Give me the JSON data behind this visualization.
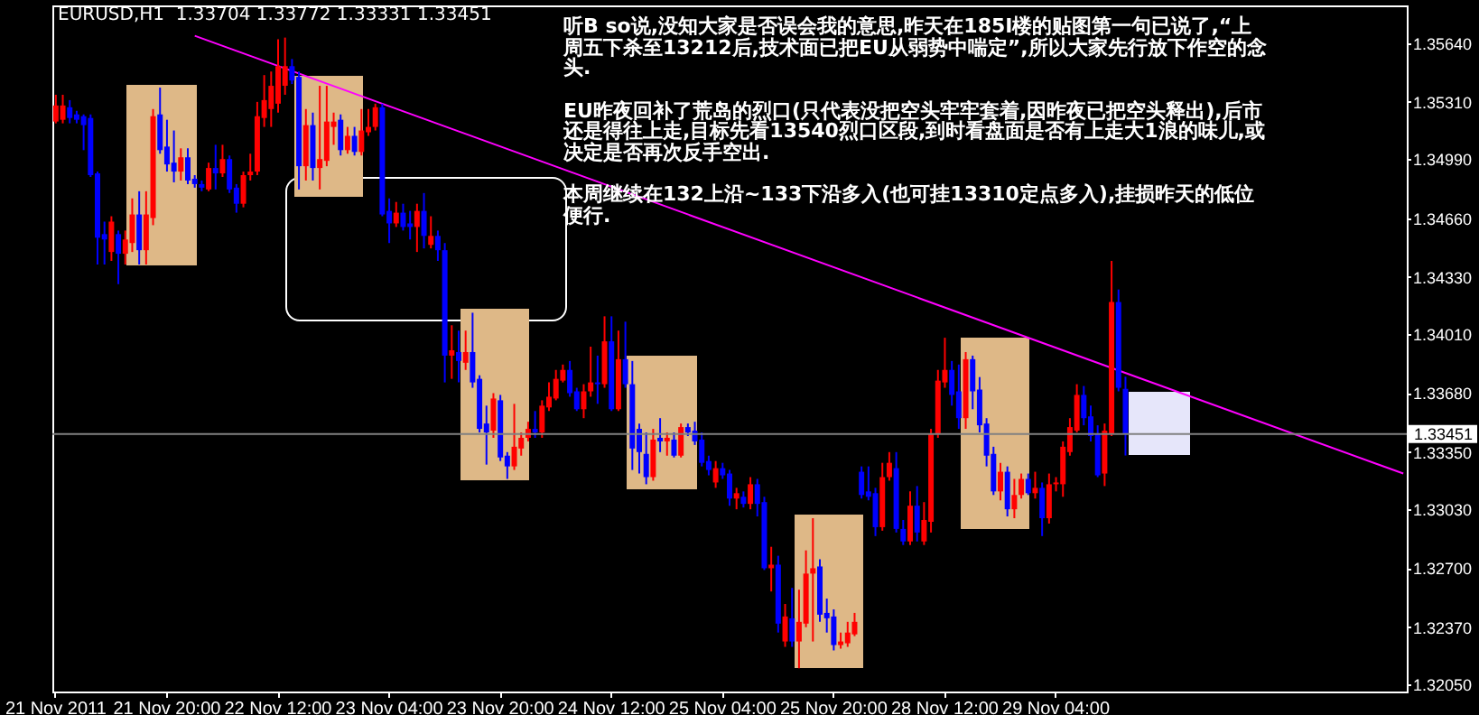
{
  "chart_data": {
    "type": "candlestick",
    "title": "EURUSD,H1  1.33704 1.33772 1.33331 1.33451",
    "annotations": [
      "听B so说,没知大家是否误会我的意思,昨天在185I楼的贴图第一句已说了,“上周五下杀至13212后,技术面已把EU从弱势中喘定”,所以大家先行放下作空的念头.",
      "EU昨夜回补了荒岛的烈口(只代表没把空头牢牢套着,因昨夜已把空头释出),后市还是得往上走,目标先看13540烈口区段,到时看盘面是否有上走大1浪的味儿,或决定是否再次反手空出.",
      "本周继续在132上沿~133下沿多入(也可挂13310定点多入),挂损昨天的低位便行."
    ],
    "categories": [
      "21 Nov 2011",
      null,
      null,
      null,
      null,
      null,
      null,
      null,
      null,
      null,
      null,
      null,
      null,
      null,
      null,
      null,
      "21 Nov 20:00",
      null,
      null,
      null,
      null,
      null,
      null,
      null,
      null,
      null,
      null,
      null,
      null,
      null,
      null,
      null,
      "22 Nov 12:00",
      null,
      null,
      null,
      null,
      null,
      null,
      null,
      null,
      null,
      null,
      null,
      null,
      null,
      null,
      null,
      "23 Nov 04:00",
      null,
      null,
      null,
      null,
      null,
      null,
      null,
      null,
      null,
      null,
      null,
      null,
      null,
      null,
      null,
      "23 Nov 20:00",
      null,
      null,
      null,
      null,
      null,
      null,
      null,
      null,
      null,
      null,
      null,
      null,
      null,
      null,
      null,
      "24 Nov 12:00",
      null,
      null,
      null,
      null,
      null,
      null,
      null,
      null,
      null,
      null,
      null,
      null,
      null,
      null,
      null,
      "25 Nov 04:00",
      null,
      null,
      null,
      null,
      null,
      null,
      null,
      null,
      null,
      null,
      null,
      null,
      null,
      null,
      null,
      "25 Nov 20:00",
      null,
      null,
      null,
      null,
      null,
      null,
      null,
      null,
      null,
      null,
      null,
      null,
      null,
      null,
      null,
      "28 Nov 12:00",
      null,
      null,
      null,
      null,
      null,
      null,
      null,
      null,
      null,
      null,
      null,
      null,
      null,
      null,
      null,
      "29 Nov 04:00",
      null,
      null,
      null,
      null,
      null,
      null,
      null,
      null,
      null,
      null,
      null,
      null,
      null,
      null,
      null,
      null,
      null,
      null,
      null,
      null,
      null,
      null,
      null,
      null,
      null,
      null,
      null,
      null,
      null,
      null,
      null,
      null,
      null,
      null,
      null,
      null,
      null,
      null,
      null,
      null,
      null,
      null,
      null,
      null,
      null,
      null,
      null,
      null,
      null,
      null
    ],
    "ohlc": [
      [
        1.352,
        1.3535,
        1.3519,
        1.3529
      ],
      [
        1.3521,
        1.3535,
        1.3519,
        1.3529
      ],
      [
        1.3528,
        1.3532,
        1.3519,
        1.3522
      ],
      [
        1.3524,
        1.3526,
        1.3519,
        1.3521
      ],
      [
        1.3523,
        1.3524,
        1.3504,
        1.3518
      ],
      [
        1.3522,
        1.3524,
        1.3489,
        1.349
      ],
      [
        1.3491,
        1.3492,
        1.344,
        1.3455
      ],
      [
        1.3457,
        1.3464,
        1.344,
        1.3454
      ],
      [
        1.3447,
        1.3467,
        1.3442,
        1.3464
      ],
      [
        1.3457,
        1.3459,
        1.3429,
        1.3446
      ],
      [
        1.3446,
        1.3459,
        1.344,
        1.3454
      ],
      [
        1.3452,
        1.3477,
        1.3447,
        1.3468
      ],
      [
        1.3468,
        1.3481,
        1.344,
        1.3448
      ],
      [
        1.3448,
        1.3481,
        1.344,
        1.3468
      ],
      [
        1.3466,
        1.3527,
        1.3462,
        1.3523
      ],
      [
        1.3524,
        1.3539,
        1.3502,
        1.3504
      ],
      [
        1.3506,
        1.3521,
        1.3492,
        1.3496
      ],
      [
        1.3497,
        1.3515,
        1.3486,
        1.3492
      ],
      [
        1.3492,
        1.3505,
        1.3487,
        1.35
      ],
      [
        1.35,
        1.3505,
        1.3485,
        1.3487
      ],
      [
        1.3488,
        1.349,
        1.3483,
        1.3485
      ],
      [
        1.3485,
        1.3487,
        1.3481,
        1.3483
      ],
      [
        1.3482,
        1.3497,
        1.3481,
        1.3494
      ],
      [
        1.3494,
        1.3507,
        1.3482,
        1.3491
      ],
      [
        1.3491,
        1.3507,
        1.3489,
        1.3499
      ],
      [
        1.3499,
        1.3501,
        1.348,
        1.3482
      ],
      [
        1.3483,
        1.3485,
        1.3469,
        1.3474
      ],
      [
        1.3474,
        1.3492,
        1.3472,
        1.349
      ],
      [
        1.349,
        1.3502,
        1.3487,
        1.3492
      ],
      [
        1.3492,
        1.3531,
        1.349,
        1.3523
      ],
      [
        1.3522,
        1.3546,
        1.3517,
        1.3532
      ],
      [
        1.3527,
        1.3548,
        1.3517,
        1.354
      ],
      [
        1.353,
        1.3566,
        1.3525,
        1.3551
      ],
      [
        1.354,
        1.3567,
        1.3535,
        1.3551
      ],
      [
        1.3551,
        1.3555,
        1.3541,
        1.3543
      ],
      [
        1.3545,
        1.3548,
        1.3482,
        1.3495
      ],
      [
        1.3495,
        1.3527,
        1.3487,
        1.3518
      ],
      [
        1.3518,
        1.3525,
        1.3487,
        1.3494
      ],
      [
        1.3494,
        1.354,
        1.3482,
        1.3499
      ],
      [
        1.3498,
        1.354,
        1.3495,
        1.352
      ],
      [
        1.3517,
        1.3525,
        1.3507,
        1.352
      ],
      [
        1.3521,
        1.3524,
        1.3501,
        1.3504
      ],
      [
        1.3504,
        1.3517,
        1.3502,
        1.3512
      ],
      [
        1.3512,
        1.3517,
        1.3501,
        1.3503
      ],
      [
        1.3503,
        1.3527,
        1.3501,
        1.3515
      ],
      [
        1.3514,
        1.3527,
        1.3512,
        1.3517
      ],
      [
        1.3517,
        1.353,
        1.3515,
        1.3528
      ],
      [
        1.3528,
        1.353,
        1.3467,
        1.3468
      ],
      [
        1.347,
        1.3477,
        1.3452,
        1.3463
      ],
      [
        1.3463,
        1.3475,
        1.3461,
        1.3469
      ],
      [
        1.3469,
        1.3474,
        1.3459,
        1.3461
      ],
      [
        1.3463,
        1.347,
        1.3454,
        1.3461
      ],
      [
        1.3461,
        1.3474,
        1.3447,
        1.347
      ],
      [
        1.347,
        1.348,
        1.3449,
        1.3456
      ],
      [
        1.3451,
        1.3467,
        1.3449,
        1.3456
      ],
      [
        1.3456,
        1.3459,
        1.3442,
        1.3448
      ],
      [
        1.3448,
        1.3452,
        1.3374,
        1.3389
      ],
      [
        1.3389,
        1.3406,
        1.3376,
        1.3392
      ],
      [
        1.3391,
        1.3403,
        1.3374,
        1.3386
      ],
      [
        1.3385,
        1.3403,
        1.3381,
        1.3391
      ],
      [
        1.3391,
        1.3413,
        1.3371,
        1.3374
      ],
      [
        1.3376,
        1.3378,
        1.3346,
        1.3348
      ],
      [
        1.3351,
        1.3361,
        1.3328,
        1.3346
      ],
      [
        1.3347,
        1.3368,
        1.3343,
        1.3365
      ],
      [
        1.3364,
        1.3367,
        1.333,
        1.3332
      ],
      [
        1.3333,
        1.3335,
        1.332,
        1.3327
      ],
      [
        1.3327,
        1.3362,
        1.3325,
        1.3338
      ],
      [
        1.3337,
        1.3346,
        1.3333,
        1.3343
      ],
      [
        1.3343,
        1.3352,
        1.3341,
        1.3348
      ],
      [
        1.3348,
        1.3358,
        1.3343,
        1.3346
      ],
      [
        1.3346,
        1.3364,
        1.3343,
        1.3361
      ],
      [
        1.336,
        1.3374,
        1.3358,
        1.3366
      ],
      [
        1.3365,
        1.3381,
        1.3364,
        1.3376
      ],
      [
        1.3375,
        1.3384,
        1.3374,
        1.3381
      ],
      [
        1.3381,
        1.3386,
        1.3366,
        1.3368
      ],
      [
        1.3369,
        1.3371,
        1.3358,
        1.3359
      ],
      [
        1.3359,
        1.3373,
        1.3354,
        1.3369
      ],
      [
        1.3369,
        1.3394,
        1.3366,
        1.3374
      ],
      [
        1.3374,
        1.3389,
        1.3362,
        1.3373
      ],
      [
        1.3373,
        1.3411,
        1.3371,
        1.3397
      ],
      [
        1.3397,
        1.3411,
        1.3358,
        1.3359
      ],
      [
        1.3359,
        1.3403,
        1.3358,
        1.3387
      ],
      [
        1.3387,
        1.3408,
        1.3371,
        1.3373
      ],
      [
        1.3373,
        1.3386,
        1.3325,
        1.3337
      ],
      [
        1.3348,
        1.3351,
        1.3323,
        1.3335
      ],
      [
        1.3334,
        1.3346,
        1.3317,
        1.3321
      ],
      [
        1.3321,
        1.3348,
        1.3319,
        1.3342
      ],
      [
        1.3343,
        1.3354,
        1.3335,
        1.3341
      ],
      [
        1.3341,
        1.3346,
        1.3333,
        1.3343
      ],
      [
        1.3342,
        1.3346,
        1.3332,
        1.3333
      ],
      [
        1.3333,
        1.3351,
        1.3332,
        1.3349
      ],
      [
        1.3349,
        1.3351,
        1.3344,
        1.3346
      ],
      [
        1.3347,
        1.3352,
        1.3339,
        1.3341
      ],
      [
        1.3342,
        1.3346,
        1.3327,
        1.3329
      ],
      [
        1.333,
        1.3333,
        1.3322,
        1.3325
      ],
      [
        1.3318,
        1.333,
        1.3315,
        1.3326
      ],
      [
        1.3326,
        1.3329,
        1.332,
        1.3322
      ],
      [
        1.3323,
        1.3325,
        1.3305,
        1.3309
      ],
      [
        1.3309,
        1.3315,
        1.3303,
        1.3312
      ],
      [
        1.331,
        1.3313,
        1.3304,
        1.3306
      ],
      [
        1.3306,
        1.3321,
        1.3303,
        1.3317
      ],
      [
        1.3317,
        1.332,
        1.3299,
        1.3306
      ],
      [
        1.3307,
        1.331,
        1.3269,
        1.327
      ],
      [
        1.327,
        1.3282,
        1.3257,
        1.3272
      ],
      [
        1.3272,
        1.3277,
        1.3234,
        1.3239
      ],
      [
        1.3229,
        1.325,
        1.3226,
        1.3243
      ],
      [
        1.3242,
        1.3259,
        1.3226,
        1.3229
      ],
      [
        1.3229,
        1.3258,
        1.3214,
        1.324
      ],
      [
        1.3239,
        1.328,
        1.3237,
        1.3267
      ],
      [
        1.3267,
        1.3298,
        1.3229,
        1.327
      ],
      [
        1.3271,
        1.3275,
        1.324,
        1.3244
      ],
      [
        1.3245,
        1.3253,
        1.3234,
        1.3242
      ],
      [
        1.3243,
        1.3247,
        1.3224,
        1.3227
      ],
      [
        1.3227,
        1.3234,
        1.3225,
        1.3229
      ],
      [
        1.3228,
        1.324,
        1.3226,
        1.3234
      ],
      [
        1.3233,
        1.3245,
        1.3232,
        1.324
      ],
      [
        1.3324,
        1.3327,
        1.3309,
        1.3311
      ],
      [
        1.3313,
        1.3327,
        1.3308,
        1.331
      ],
      [
        1.3312,
        1.3315,
        1.3288,
        1.3293
      ],
      [
        1.3293,
        1.3329,
        1.3291,
        1.3321
      ],
      [
        1.3321,
        1.3335,
        1.3319,
        1.3329
      ],
      [
        1.3326,
        1.3335,
        1.329,
        1.3292
      ],
      [
        1.3292,
        1.3297,
        1.3283,
        1.3285
      ],
      [
        1.3285,
        1.3313,
        1.3283,
        1.3305
      ],
      [
        1.3305,
        1.3316,
        1.3285,
        1.329
      ],
      [
        1.3285,
        1.3307,
        1.3283,
        1.3297
      ],
      [
        1.3296,
        1.3348,
        1.329,
        1.3345
      ],
      [
        1.3345,
        1.3381,
        1.3343,
        1.3375
      ],
      [
        1.3374,
        1.3399,
        1.3371,
        1.3381
      ],
      [
        1.3381,
        1.3386,
        1.3361,
        1.3367
      ],
      [
        1.3369,
        1.3384,
        1.3348,
        1.3354
      ],
      [
        1.3354,
        1.3391,
        1.3348,
        1.3387
      ],
      [
        1.3387,
        1.3389,
        1.3359,
        1.3369
      ],
      [
        1.337,
        1.3377,
        1.3346,
        1.335
      ],
      [
        1.3351,
        1.3354,
        1.3327,
        1.3333
      ],
      [
        1.3334,
        1.3338,
        1.3311,
        1.3313
      ],
      [
        1.3313,
        1.3329,
        1.3308,
        1.3324
      ],
      [
        1.3324,
        1.3327,
        1.3299,
        1.3303
      ],
      [
        1.3303,
        1.332,
        1.3298,
        1.3311
      ],
      [
        1.3311,
        1.3323,
        1.3309,
        1.332
      ],
      [
        1.332,
        1.3323,
        1.3311,
        1.3312
      ],
      [
        1.3312,
        1.3324,
        1.3309,
        1.3315
      ],
      [
        1.3315,
        1.3318,
        1.3288,
        1.3298
      ],
      [
        1.3298,
        1.3323,
        1.3295,
        1.3317
      ],
      [
        1.3317,
        1.3321,
        1.3313,
        1.3318
      ],
      [
        1.3317,
        1.3341,
        1.331,
        1.3338
      ],
      [
        1.3335,
        1.3354,
        1.3333,
        1.3349
      ],
      [
        1.3347,
        1.3373,
        1.3346,
        1.3367
      ],
      [
        1.3367,
        1.3372,
        1.335,
        1.3354
      ],
      [
        1.3355,
        1.3361,
        1.3341,
        1.3344
      ],
      [
        1.3345,
        1.335,
        1.3321,
        1.3322
      ],
      [
        1.3323,
        1.3351,
        1.3316,
        1.3347
      ],
      [
        1.3345,
        1.3442,
        1.3344,
        1.3419
      ],
      [
        1.3419,
        1.3426,
        1.3369,
        1.3371
      ],
      [
        1.33704,
        1.33772,
        1.33331,
        1.33451
      ],
      null,
      null,
      null,
      null,
      null,
      null,
      null,
      null,
      null,
      null,
      null,
      null,
      null,
      null,
      null,
      null,
      null,
      null,
      null,
      null,
      null,
      null,
      null,
      null,
      null,
      null,
      null,
      null,
      null,
      null,
      null,
      null,
      null,
      null,
      null,
      null,
      null,
      null,
      null,
      null
    ],
    "colors": [
      "#ff0000",
      "#ff0000",
      "#0000ff",
      "#0000ff",
      "#0000ff",
      "#0000ff",
      "#0000ff",
      "#0000ff",
      "#ff0000",
      "#0000ff",
      "#ff0000",
      "#ff0000",
      "#0000ff",
      "#ff0000",
      "#ff0000",
      "#0000ff",
      "#0000ff",
      "#0000ff",
      "#ff0000",
      "#0000ff",
      "#0000ff",
      "#0000ff",
      "#ff0000",
      "#0000ff",
      "#ff0000",
      "#0000ff",
      "#0000ff",
      "#ff0000",
      "#ff0000",
      "#ff0000",
      "#ff0000",
      "#ff0000",
      "#ff0000",
      "#ff0000",
      "#0000ff",
      "#0000ff",
      "#ff0000",
      "#0000ff",
      "#ff0000",
      "#ff0000",
      "#ff0000",
      "#0000ff",
      "#ff0000",
      "#0000ff",
      "#ff0000",
      "#ff0000",
      "#ff0000",
      "#0000ff",
      "#0000ff",
      "#ff0000",
      "#0000ff",
      "#0000ff",
      "#ff0000",
      "#0000ff",
      "#ff0000",
      "#0000ff",
      "#0000ff",
      "#ff0000",
      "#0000ff",
      "#ff0000",
      "#0000ff",
      "#0000ff",
      "#0000ff",
      "#ff0000",
      "#0000ff",
      "#0000ff",
      "#ff0000",
      "#ff0000",
      "#ff0000",
      "#0000ff",
      "#ff0000",
      "#ff0000",
      "#ff0000",
      "#ff0000",
      "#0000ff",
      "#0000ff",
      "#ff0000",
      "#ff0000",
      "#0000ff",
      "#ff0000",
      "#0000ff",
      "#ff0000",
      "#0000ff",
      "#0000ff",
      "#0000ff",
      "#0000ff",
      "#ff0000",
      "#0000ff",
      "#ff0000",
      "#0000ff",
      "#ff0000",
      "#0000ff",
      "#0000ff",
      "#0000ff",
      "#0000ff",
      "#ff0000",
      "#0000ff",
      "#0000ff",
      "#ff0000",
      "#0000ff",
      "#ff0000",
      "#0000ff",
      "#0000ff",
      "#ff0000",
      "#0000ff",
      "#ff0000",
      "#0000ff",
      "#ff0000",
      "#ff0000",
      "#ff0000",
      "#0000ff",
      "#0000ff",
      "#0000ff",
      "#ff0000",
      "#ff0000",
      "#ff0000",
      "#0000ff",
      "#0000ff",
      "#0000ff",
      "#ff0000",
      "#ff0000",
      "#0000ff",
      "#0000ff",
      "#ff0000",
      "#0000ff",
      "#ff0000",
      "#ff0000",
      "#ff0000",
      "#ff0000",
      "#0000ff",
      "#0000ff",
      "#ff0000",
      "#0000ff",
      "#0000ff",
      "#0000ff",
      "#0000ff",
      "#ff0000",
      "#0000ff",
      "#ff0000",
      "#ff0000",
      "#0000ff",
      "#ff0000",
      "#0000ff",
      "#ff0000",
      "#ff0000",
      "#ff0000",
      "#ff0000",
      "#ff0000",
      "#0000ff",
      "#0000ff",
      "#0000ff",
      "#ff0000",
      "#ff0000",
      "#0000ff",
      "#0000ff",
      null,
      null,
      null,
      null,
      null,
      null,
      null,
      null,
      null,
      null,
      null,
      null,
      null,
      null,
      null,
      null,
      null,
      null,
      null,
      null,
      null,
      null,
      null,
      null,
      null,
      null,
      null,
      null,
      null,
      null,
      null,
      null,
      null,
      null,
      null,
      null,
      null,
      null,
      null,
      null
    ],
    "series": [
      {
        "type": "line",
        "color": "#ff00ff",
        "values": [
          null,
          null,
          null,
          null,
          null,
          null,
          null,
          null,
          null,
          null,
          null,
          null,
          null,
          null,
          null,
          null,
          null,
          null,
          null,
          null,
          1.3568,
          null,
          null,
          null,
          null,
          null,
          null,
          null,
          null,
          null,
          null,
          null,
          null,
          null,
          null,
          null,
          null,
          null,
          null,
          null,
          null,
          null,
          null,
          null,
          null,
          null,
          null,
          null,
          null,
          null,
          null,
          null,
          null,
          null,
          null,
          null,
          null,
          null,
          null,
          null,
          null,
          null,
          null,
          null,
          null,
          null,
          null,
          null,
          null,
          null,
          null,
          null,
          null,
          null,
          null,
          null,
          null,
          null,
          null,
          null,
          null,
          null,
          null,
          null,
          null,
          null,
          null,
          null,
          null,
          null,
          null,
          null,
          null,
          null,
          null,
          null,
          null,
          null,
          null,
          null,
          null,
          null,
          null,
          null,
          null,
          null,
          null,
          null,
          null,
          null,
          null,
          null,
          null,
          null,
          null,
          null,
          null,
          null,
          null,
          null,
          null,
          null,
          null,
          null,
          null,
          null,
          null,
          null,
          null,
          null,
          null,
          null,
          null,
          null,
          null,
          null,
          null,
          null,
          null,
          null,
          null,
          null,
          null,
          null,
          null,
          null,
          null,
          null,
          null,
          null,
          null,
          null,
          null,
          null,
          null,
          null,
          null,
          null,
          null,
          null,
          null,
          null,
          null,
          null,
          null,
          null,
          null,
          null,
          null,
          null,
          null,
          null,
          null,
          null,
          null,
          null,
          null,
          null,
          null,
          null,
          null,
          null,
          null,
          null,
          null,
          null,
          null,
          null,
          null,
          null,
          null,
          null,
          null,
          null,
          1.3323
        ]
      }
    ],
    "ylim": [
      1.3201,
      1.3585
    ],
    "yticks": [
      {
        "value": 1.3564,
        "label": "1.35640"
      },
      {
        "value": 1.3531,
        "label": "1.35310"
      },
      {
        "value": 1.3499,
        "label": "1.34990"
      },
      {
        "value": 1.3466,
        "label": "1.34660"
      },
      {
        "value": 1.3433,
        "label": "1.34330"
      },
      {
        "value": 1.3401,
        "label": "1.34010"
      },
      {
        "value": 1.3368,
        "label": "1.33680"
      },
      {
        "value": 1.3335,
        "label": "1.33350"
      },
      {
        "value": 1.3303,
        "label": "1.33030"
      },
      {
        "value": 1.327,
        "label": "1.32700"
      },
      {
        "value": 1.3237,
        "label": "1.32370"
      },
      {
        "value": 1.3205,
        "label": "1.32050"
      }
    ],
    "ref_lines": [
      {
        "axis": "y",
        "value": 1.33451,
        "label": "1.33451",
        "color": "#808080"
      }
    ]
  }
}
